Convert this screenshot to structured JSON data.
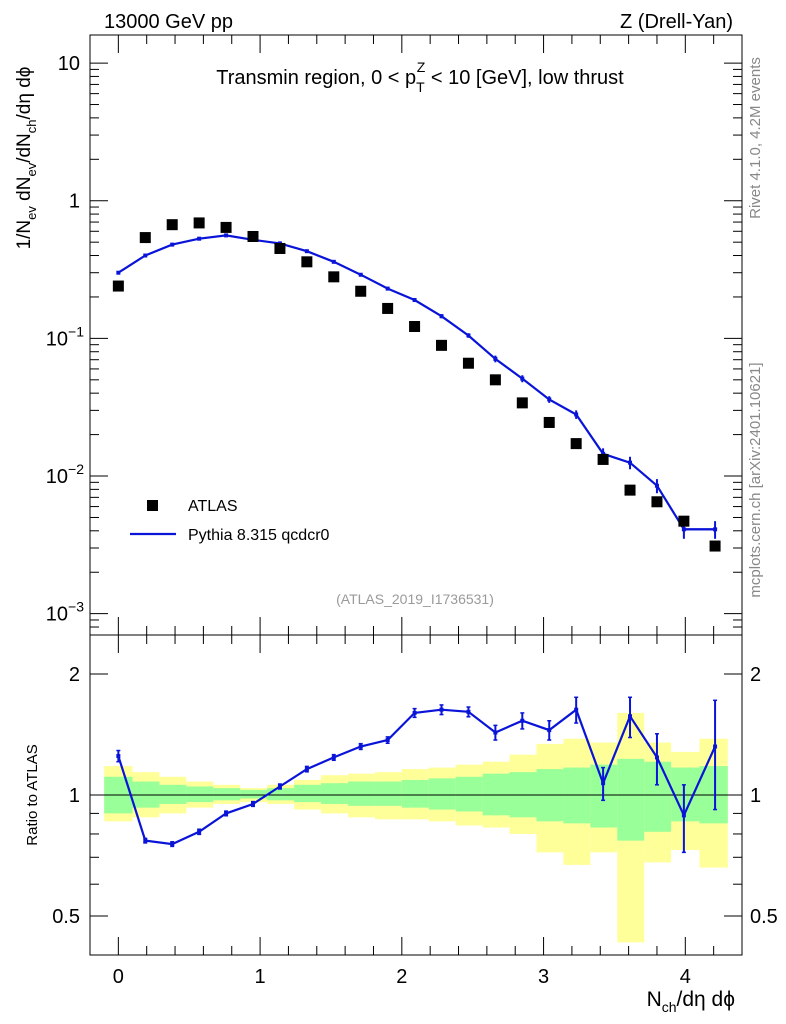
{
  "header": {
    "left": "13000 GeV pp",
    "right": "Z (Drell-Yan)"
  },
  "side_labels": {
    "rivet": "Rivet 4.1.0,  4.2M events",
    "mcplots": "mcplots.cern.ch [arXiv:2401.10621]"
  },
  "colors": {
    "data_marker": "#000000",
    "mc_line": "#0a14d8",
    "band_inner": "#99ff99",
    "band_outer": "#ffff99"
  },
  "chart_data": [
    {
      "type": "line",
      "panel": "main",
      "title": "Transmin region, 0 < p_T^Z < 10 [GeV], low thrust",
      "title_parts": {
        "pre": "Transmin region, 0 < p",
        "sub": "T",
        "sup": "Z",
        "post": " < 10 [GeV], low thrust"
      },
      "reference": "(ATLAS_2019_I1736531)",
      "ylabel": "1/N_ev dN_ev/dN_ch/dη dϕ",
      "yscale": "log",
      "ylim": [
        0.0007,
        16
      ],
      "xlim": [
        -0.2,
        4.4
      ],
      "y_ticks": [
        {
          "value": 0.001,
          "base": "10",
          "exp": "−3"
        },
        {
          "value": 0.01,
          "base": "10",
          "exp": "−2"
        },
        {
          "value": 0.1,
          "base": "10",
          "exp": "−1"
        },
        {
          "value": 1,
          "base": "1",
          "exp": ""
        },
        {
          "value": 10,
          "base": "10",
          "exp": ""
        }
      ],
      "legend": {
        "position": "lower-left",
        "entries": [
          {
            "label": "ATLAS",
            "style": "square-marker"
          },
          {
            "label": "Pythia 8.315 qcdcr0",
            "style": "line"
          }
        ]
      },
      "x": [
        0.0,
        0.19,
        0.38,
        0.57,
        0.76,
        0.95,
        1.14,
        1.33,
        1.52,
        1.71,
        1.9,
        2.09,
        2.28,
        2.47,
        2.66,
        2.85,
        3.04,
        3.23,
        3.42,
        3.61,
        3.8,
        3.99,
        4.21
      ],
      "series": [
        {
          "name": "ATLAS",
          "values": [
            0.24,
            0.54,
            0.67,
            0.69,
            0.64,
            0.55,
            0.45,
            0.36,
            0.28,
            0.22,
            0.165,
            0.122,
            0.089,
            0.066,
            0.05,
            0.034,
            0.0245,
            0.0172,
            0.0132,
            0.0079,
            0.0065,
            0.0047,
            0.0031
          ]
        },
        {
          "name": "Pythia 8.315 qcdcr0",
          "values": [
            0.3,
            0.4,
            0.48,
            0.53,
            0.56,
            0.52,
            0.49,
            0.43,
            0.36,
            0.29,
            0.23,
            0.19,
            0.145,
            0.105,
            0.071,
            0.051,
            0.036,
            0.028,
            0.0145,
            0.0125,
            0.0085,
            0.0041,
            0.0041
          ],
          "errors": [
            0.006,
            0.007,
            0.008,
            0.008,
            0.009,
            0.009,
            0.009,
            0.008,
            0.008,
            0.007,
            0.006,
            0.006,
            0.005,
            0.004,
            0.004,
            0.003,
            0.002,
            0.002,
            0.0014,
            0.0013,
            0.001,
            0.0006,
            0.0006
          ]
        }
      ]
    },
    {
      "type": "line",
      "panel": "ratio",
      "ylabel": "Ratio to ATLAS",
      "xlabel": "N_ch/dη dϕ",
      "yscale": "log",
      "ylim": [
        0.4,
        2.5
      ],
      "xlim": [
        -0.2,
        4.4
      ],
      "x_ticks": [
        0,
        1,
        2,
        3,
        4
      ],
      "y_ticks": [
        0.5,
        1,
        2
      ],
      "y_tick_labels": [
        "0.5",
        "1",
        "2"
      ],
      "reference_line": 1,
      "bins": [
        [
          -0.1,
          0.1
        ],
        [
          0.1,
          0.29
        ],
        [
          0.29,
          0.48
        ],
        [
          0.48,
          0.67
        ],
        [
          0.67,
          0.86
        ],
        [
          0.86,
          1.05
        ],
        [
          1.05,
          1.24
        ],
        [
          1.24,
          1.43
        ],
        [
          1.43,
          1.62
        ],
        [
          1.62,
          1.81
        ],
        [
          1.81,
          2.0
        ],
        [
          2.0,
          2.19
        ],
        [
          2.19,
          2.38
        ],
        [
          2.38,
          2.57
        ],
        [
          2.57,
          2.76
        ],
        [
          2.76,
          2.95
        ],
        [
          2.95,
          3.14
        ],
        [
          3.14,
          3.33
        ],
        [
          3.33,
          3.52
        ],
        [
          3.52,
          3.71
        ],
        [
          3.71,
          3.9
        ],
        [
          3.9,
          4.1
        ],
        [
          4.1,
          4.3
        ]
      ],
      "band_inner": [
        [
          0.9,
          1.11
        ],
        [
          0.93,
          1.08
        ],
        [
          0.95,
          1.06
        ],
        [
          0.96,
          1.05
        ],
        [
          0.97,
          1.04
        ],
        [
          0.98,
          1.03
        ],
        [
          0.97,
          1.04
        ],
        [
          0.96,
          1.06
        ],
        [
          0.95,
          1.07
        ],
        [
          0.94,
          1.08
        ],
        [
          0.94,
          1.08
        ],
        [
          0.93,
          1.09
        ],
        [
          0.92,
          1.1
        ],
        [
          0.91,
          1.11
        ],
        [
          0.89,
          1.13
        ],
        [
          0.88,
          1.14
        ],
        [
          0.86,
          1.16
        ],
        [
          0.85,
          1.17
        ],
        [
          0.83,
          1.19
        ],
        [
          0.77,
          1.23
        ],
        [
          0.81,
          1.21
        ],
        [
          0.86,
          1.17
        ],
        [
          0.85,
          1.18
        ]
      ],
      "band_outer": [
        [
          0.86,
          1.18
        ],
        [
          0.88,
          1.14
        ],
        [
          0.9,
          1.11
        ],
        [
          0.93,
          1.08
        ],
        [
          0.95,
          1.06
        ],
        [
          0.96,
          1.04
        ],
        [
          0.95,
          1.06
        ],
        [
          0.92,
          1.09
        ],
        [
          0.9,
          1.12
        ],
        [
          0.88,
          1.13
        ],
        [
          0.87,
          1.14
        ],
        [
          0.87,
          1.16
        ],
        [
          0.86,
          1.17
        ],
        [
          0.84,
          1.19
        ],
        [
          0.83,
          1.21
        ],
        [
          0.8,
          1.26
        ],
        [
          0.72,
          1.34
        ],
        [
          0.67,
          1.38
        ],
        [
          0.72,
          1.35
        ],
        [
          0.43,
          1.6
        ],
        [
          0.68,
          1.35
        ],
        [
          0.73,
          1.28
        ],
        [
          0.66,
          1.38
        ]
      ],
      "series": [
        {
          "name": "Pythia 8.315 qcdcr0",
          "x": [
            0.0,
            0.19,
            0.38,
            0.57,
            0.76,
            0.95,
            1.14,
            1.33,
            1.52,
            1.71,
            1.9,
            2.09,
            2.28,
            2.47,
            2.66,
            2.85,
            3.04,
            3.23,
            3.42,
            3.61,
            3.8,
            3.99,
            4.21
          ],
          "values": [
            1.25,
            0.77,
            0.755,
            0.81,
            0.9,
            0.95,
            1.05,
            1.16,
            1.24,
            1.32,
            1.37,
            1.6,
            1.63,
            1.61,
            1.43,
            1.53,
            1.45,
            1.63,
            1.07,
            1.57,
            1.24,
            0.89,
            1.32
          ],
          "errors": [
            0.04,
            0.01,
            0.01,
            0.012,
            0.012,
            0.013,
            0.015,
            0.018,
            0.02,
            0.022,
            0.025,
            0.04,
            0.045,
            0.045,
            0.06,
            0.07,
            0.08,
            0.12,
            0.1,
            0.18,
            0.18,
            0.17,
            0.4
          ]
        }
      ]
    }
  ]
}
